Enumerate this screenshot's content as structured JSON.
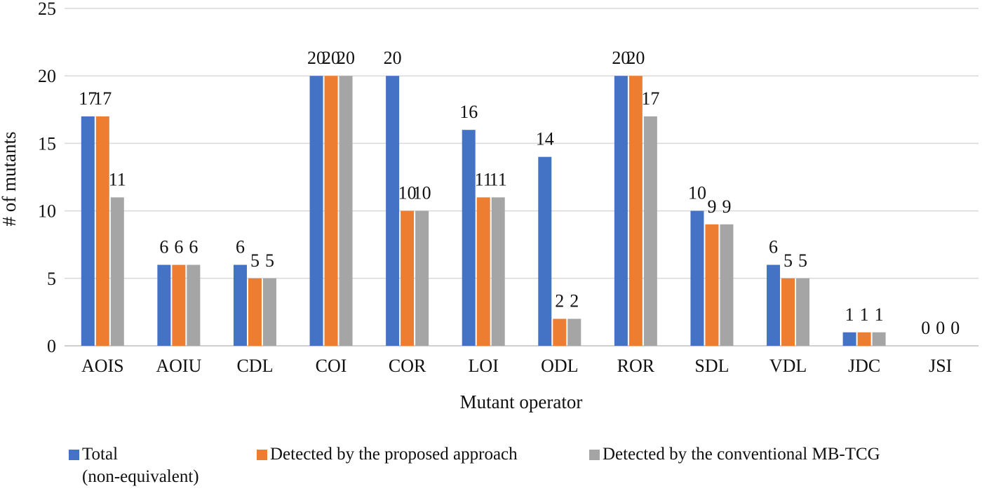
{
  "chart_data": {
    "type": "bar",
    "title": "",
    "xlabel": "Mutant operator",
    "ylabel": "# of mutants",
    "ylim": [
      0,
      25
    ],
    "yticks": [
      "0",
      "5",
      "10",
      "15",
      "20",
      "25"
    ],
    "grid": true,
    "legend_position": "bottom",
    "categories": [
      "AOIS",
      "AOIU",
      "CDL",
      "COI",
      "COR",
      "LOI",
      "ODL",
      "ROR",
      "SDL",
      "VDL",
      "JDC",
      "JSI"
    ],
    "series": [
      {
        "name": "Total\n(non-equivalent)",
        "color": "#4472C4",
        "values": [
          17,
          6,
          6,
          20,
          20,
          16,
          14,
          20,
          10,
          6,
          1,
          0
        ]
      },
      {
        "name": "Detected by the proposed approach",
        "color": "#ED7D31",
        "values": [
          17,
          6,
          5,
          20,
          10,
          11,
          2,
          20,
          9,
          5,
          1,
          0
        ]
      },
      {
        "name": "Detected by the conventional MB-TCG",
        "color": "#A5A5A5",
        "values": [
          11,
          6,
          5,
          20,
          10,
          11,
          2,
          17,
          9,
          5,
          1,
          0
        ]
      }
    ]
  }
}
